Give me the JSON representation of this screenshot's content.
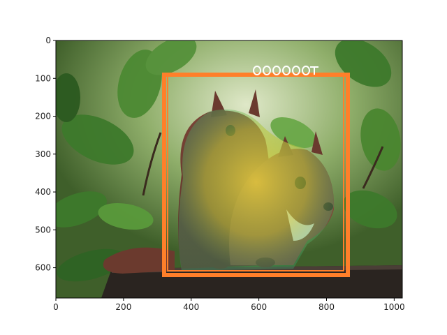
{
  "figure": {
    "x_ticks": [
      "0",
      "200",
      "400",
      "600",
      "800",
      "1000"
    ],
    "y_ticks": [
      "0",
      "100",
      "200",
      "300",
      "400",
      "500",
      "600"
    ],
    "x_tick_values": [
      0,
      200,
      400,
      600,
      800,
      1000
    ],
    "y_tick_values": [
      0,
      100,
      200,
      300,
      400,
      500,
      600
    ],
    "x_range": [
      0,
      1024
    ],
    "y_range": [
      680,
      0
    ],
    "y_inverted": true
  },
  "image": {
    "subject": "two red squirrels sitting on a wooden plank in front of green leaves",
    "overlay": "yellow-green semi-transparent segmentation mask over the squirrels"
  },
  "annotations": {
    "box_color": "#ff7f2a",
    "label_color": "#ffffff"
  }
}
